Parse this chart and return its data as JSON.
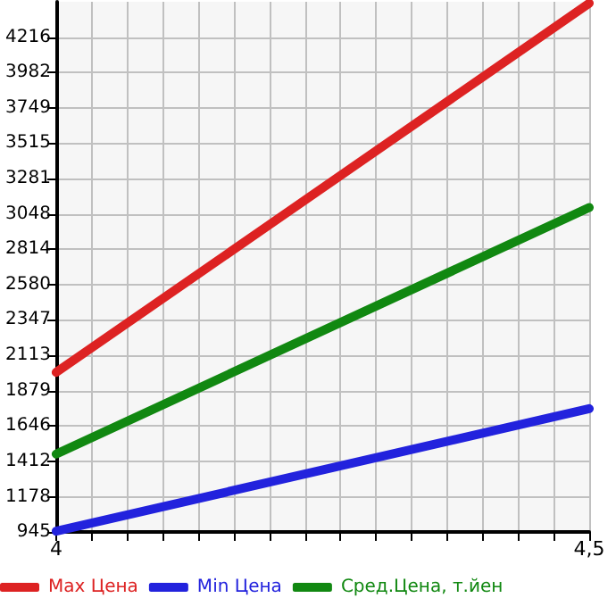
{
  "chart_data": {
    "type": "line",
    "x": [
      4,
      4.5
    ],
    "series": [
      {
        "name": "Max Цена",
        "color": "#dd2222",
        "values": [
          2000,
          4440
        ]
      },
      {
        "name": "Min Цена",
        "color": "#2222dd",
        "values": [
          950,
          1760
        ]
      },
      {
        "name": "Сред.Цена, т.йен",
        "color": "#118811",
        "values": [
          1460,
          3090
        ]
      }
    ],
    "xlim": [
      4,
      4.5
    ],
    "xticks": [
      4,
      {
        "value": 4.0333,
        "label": null
      },
      {
        "value": 4.0667,
        "label": null
      },
      {
        "value": 4.1,
        "label": null
      },
      {
        "value": 4.1333,
        "label": null
      },
      {
        "value": 4.1667,
        "label": null
      },
      {
        "value": 4.2,
        "label": null
      },
      {
        "value": 4.2333,
        "label": null
      },
      {
        "value": 4.2667,
        "label": null
      },
      {
        "value": 4.3,
        "label": null
      },
      {
        "value": 4.3333,
        "label": null
      },
      {
        "value": 4.3667,
        "label": null
      },
      {
        "value": 4.4,
        "label": null
      },
      {
        "value": 4.4333,
        "label": null
      },
      {
        "value": 4.4667,
        "label": null
      },
      {
        "value": 4.5,
        "label": "4,5"
      }
    ],
    "ylim": [
      945,
      4450
    ],
    "yticks": [
      945,
      1178,
      1412,
      1646,
      1879,
      2113,
      2347,
      2580,
      2814,
      3048,
      3281,
      3515,
      3749,
      3982,
      4216
    ],
    "grid": true,
    "legend": "bottom left",
    "marker": "none",
    "line_style": "solid"
  }
}
